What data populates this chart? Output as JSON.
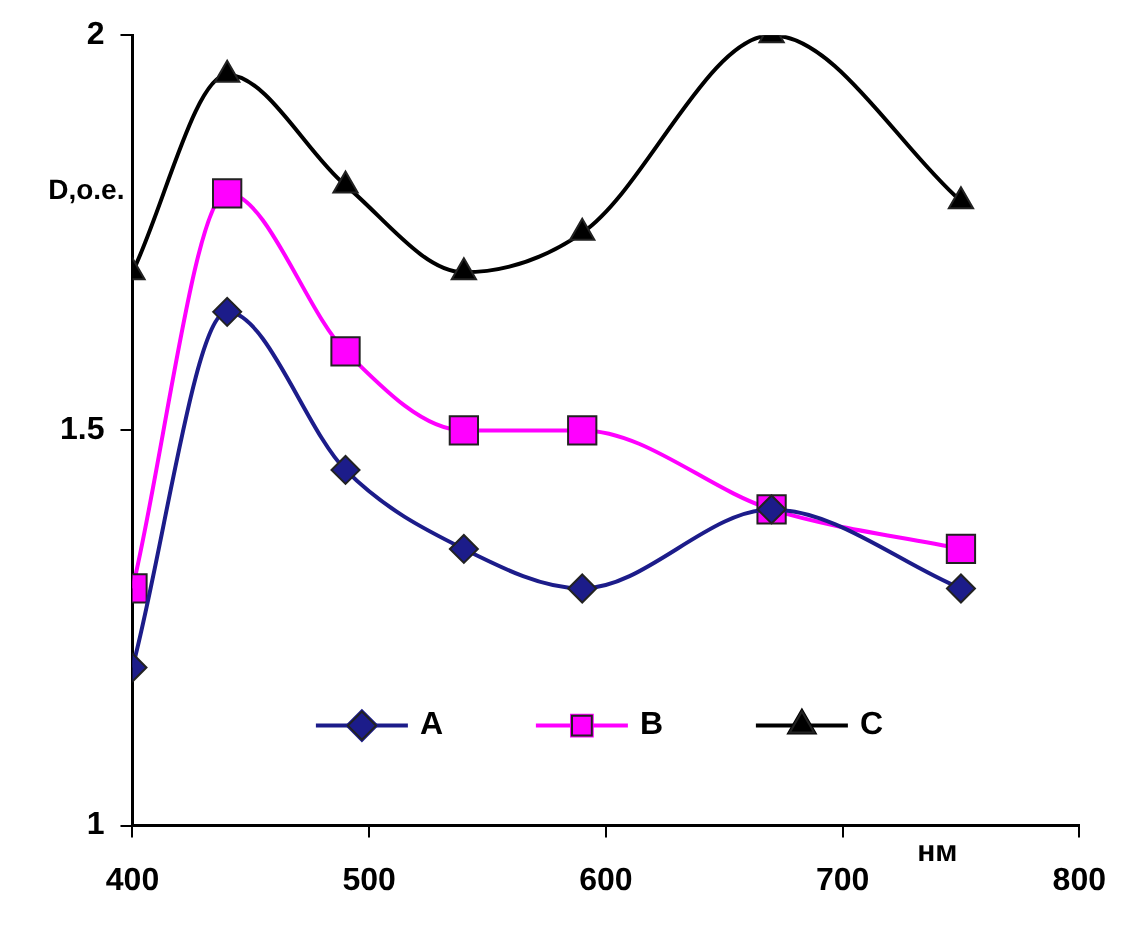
{
  "chart_data": {
    "type": "line",
    "xlabel": "нм",
    "ylabel": "D,o.e.",
    "x": [
      400,
      440,
      490,
      540,
      590,
      670,
      750
    ],
    "xlim": [
      400,
      800
    ],
    "xticks": [
      400,
      500,
      600,
      700,
      800
    ],
    "ylim": [
      1,
      2
    ],
    "yticks": [
      1,
      1.5,
      2
    ],
    "grid": false,
    "legend": "bottom",
    "series": [
      {
        "name": "A",
        "color": "#1c1c8a",
        "marker": "diamond",
        "values": [
          1.2,
          1.65,
          1.45,
          1.35,
          1.3,
          1.4,
          1.3
        ]
      },
      {
        "name": "B",
        "color": "#ff00ff",
        "marker": "square",
        "values": [
          1.3,
          1.8,
          1.6,
          1.5,
          1.5,
          1.4,
          1.35
        ]
      },
      {
        "name": "C",
        "color": "#000000",
        "marker": "triangle",
        "values": [
          1.7,
          1.95,
          1.81,
          1.7,
          1.75,
          2.0,
          1.79
        ]
      }
    ]
  }
}
